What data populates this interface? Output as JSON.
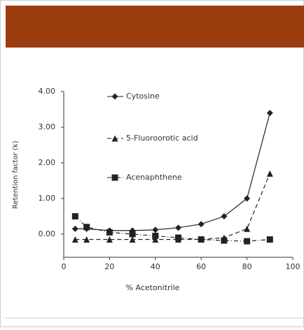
{
  "chart_data": {
    "type": "line",
    "x_label": "% Acetonitrile",
    "y_label": "Retention factor (k)",
    "x": [
      5,
      10,
      20,
      30,
      40,
      50,
      60,
      70,
      80,
      90
    ],
    "series": [
      {
        "name": "Cytosine",
        "color": "#222222",
        "marker": "diamond",
        "dash": "solid",
        "values": [
          0.15,
          0.15,
          0.1,
          0.1,
          0.12,
          0.18,
          0.28,
          0.5,
          1.0,
          3.4
        ]
      },
      {
        "name": "5-Fluoroorotic acid",
        "color": "#222222",
        "marker": "triangle",
        "dash": "dashed",
        "values": [
          -0.15,
          -0.15,
          -0.15,
          -0.15,
          -0.15,
          -0.15,
          -0.15,
          -0.1,
          0.15,
          1.7
        ]
      },
      {
        "name": "Acenaphthene",
        "color": "#222222",
        "marker": "square",
        "dash": "dashdot",
        "values": [
          0.5,
          0.2,
          0.05,
          0.0,
          -0.05,
          -0.1,
          -0.15,
          -0.18,
          -0.2,
          -0.15
        ]
      }
    ],
    "xlim": [
      0,
      100
    ],
    "xticks": [
      0,
      20,
      40,
      60,
      80,
      100
    ],
    "ylim": [
      -0.65,
      4.0
    ],
    "yticks": [
      {
        "value": 0,
        "label": "0.00"
      },
      {
        "value": 1,
        "label": "1.00"
      },
      {
        "value": 2,
        "label": "2.00"
      },
      {
        "value": 3,
        "label": "3.00"
      },
      {
        "value": 4,
        "label": "4.00"
      }
    ],
    "grid": false
  }
}
